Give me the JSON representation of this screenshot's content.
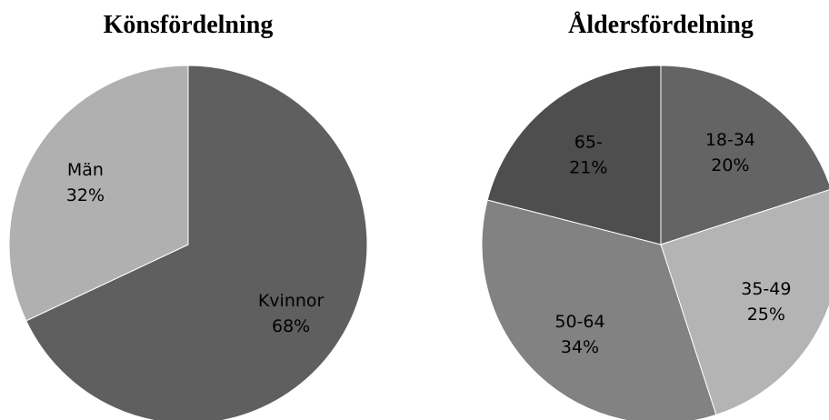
{
  "chart_data": [
    {
      "type": "pie",
      "title": "Könsfördelning",
      "slices": [
        {
          "label": "Kvinnor",
          "value": 68,
          "display": "68%",
          "color": "#5f5f5f"
        },
        {
          "label": "Män",
          "value": 32,
          "display": "32%",
          "color": "#b0b0b0"
        }
      ]
    },
    {
      "type": "pie",
      "title": "Åldersfördelning",
      "slices": [
        {
          "label": "18-34",
          "value": 20,
          "display": "20%",
          "color": "#646464"
        },
        {
          "label": "35-49",
          "value": 25,
          "display": "25%",
          "color": "#b4b4b4"
        },
        {
          "label": "50-64",
          "value": 34,
          "display": "34%",
          "color": "#828282"
        },
        {
          "label": "65-",
          "value": 21,
          "display": "21%",
          "color": "#4e4e4e"
        }
      ]
    }
  ]
}
